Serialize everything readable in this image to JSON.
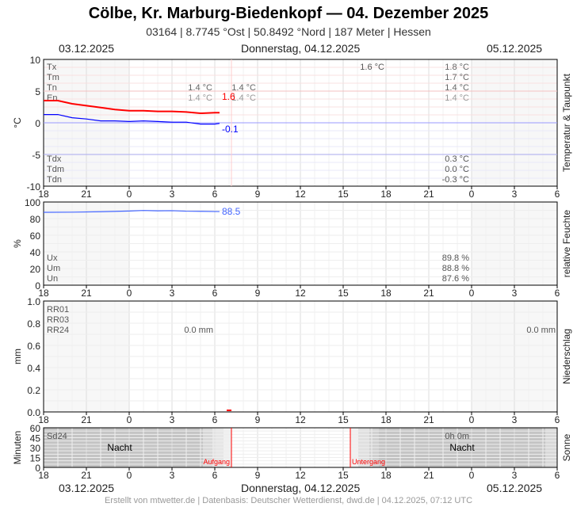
{
  "header": {
    "title": "Cölbe, Kr. Marburg-Biedenkopf  —  04. Dezember 2025",
    "subtitle": "03164  |  8.7745 °Ost  |  50.8492 °Nord  |  187 Meter  |  Hessen",
    "date_left": "03.12.2025",
    "date_center": "Donnerstag, 04.12.2025",
    "date_right": "05.12.2025"
  },
  "footer": "Erstellt von mtwetter.de | Datenbasis: Deutscher Wetterdienst, dwd.de | 04.12.2025, 07:12 UTC",
  "x_ticks": [
    "18",
    "21",
    "0",
    "3",
    "6",
    "9",
    "12",
    "15",
    "18",
    "21",
    "0",
    "3",
    "6"
  ],
  "chart_data": [
    {
      "type": "line",
      "title": "Temperatur & Taupunkt",
      "ylabel": "°C",
      "ylim": [
        -10,
        10
      ],
      "yticks": [
        "10",
        "5",
        "0",
        "-5",
        "-10"
      ],
      "labels_top": [
        "Tx",
        "Tm",
        "Tn",
        "En"
      ],
      "labels_bottom": [
        "Tdx",
        "Tdm",
        "Tdn"
      ],
      "stats_mid1": [
        "1.4 °C",
        "1.4 °C"
      ],
      "stats_mid2": [
        "1.4 °C",
        "1.4 °C"
      ],
      "stat_tx_day": "1.6 °C",
      "stats_right_top": [
        "1.8 °C",
        "1.7 °C",
        "1.4 °C",
        "1.4 °C"
      ],
      "stats_right_bottom": [
        "0.3 °C",
        "0.0 °C",
        "-0.3 °C"
      ],
      "series": [
        {
          "name": "Temperatur",
          "color": "#ff0000",
          "last_label": "1.6",
          "x": [
            "03.12 18:00",
            "03.12 19:00",
            "03.12 20:00",
            "03.12 21:00",
            "03.12 22:00",
            "03.12 23:00",
            "04.12 00:00",
            "04.12 01:00",
            "04.12 02:00",
            "04.12 03:00",
            "04.12 04:00",
            "04.12 05:00",
            "04.12 06:00",
            "04.12 06:20"
          ],
          "values": [
            3.5,
            3.5,
            3.0,
            2.7,
            2.4,
            2.1,
            1.9,
            1.9,
            1.8,
            1.8,
            1.7,
            1.5,
            1.6,
            1.6
          ]
        },
        {
          "name": "Taupunkt",
          "color": "#0000ff",
          "last_label": "-0.1",
          "x": [
            "03.12 18:00",
            "03.12 19:00",
            "03.12 20:00",
            "03.12 21:00",
            "03.12 22:00",
            "03.12 23:00",
            "04.12 00:00",
            "04.12 01:00",
            "04.12 02:00",
            "04.12 03:00",
            "04.12 04:00",
            "04.12 05:00",
            "04.12 06:00",
            "04.12 06:20"
          ],
          "values": [
            1.3,
            1.3,
            0.8,
            0.6,
            0.3,
            0.3,
            0.2,
            0.3,
            0.2,
            0.1,
            0.1,
            -0.2,
            -0.2,
            -0.1
          ]
        }
      ]
    },
    {
      "type": "line",
      "title": "relative Feuchte",
      "ylabel": "%",
      "ylim": [
        0,
        100
      ],
      "yticks": [
        "100",
        "80",
        "60",
        "40",
        "20",
        "0"
      ],
      "labels": [
        "Ux",
        "Um",
        "Un"
      ],
      "stats_right": [
        "89.8 %",
        "88.8 %",
        "87.6 %"
      ],
      "series": [
        {
          "color": "#4466ff",
          "last_label": "88.5",
          "x": [
            "03.12 18:00",
            "03.12 20:00",
            "03.12 22:00",
            "04.12 00:00",
            "04.12 01:00",
            "04.12 02:00",
            "04.12 03:00",
            "04.12 04:00",
            "04.12 05:00",
            "04.12 06:20"
          ],
          "values": [
            87.6,
            87.8,
            88.3,
            89.2,
            89.8,
            89.4,
            89.6,
            89.0,
            88.8,
            88.5
          ]
        }
      ]
    },
    {
      "type": "bar",
      "title": "Niederschlag",
      "ylabel": "mm",
      "ylim": [
        0,
        1
      ],
      "yticks": [
        "1.0",
        "0.8",
        "0.6",
        "0.4",
        "0.2",
        "0.0"
      ],
      "labels": [
        "RR01",
        "RR03",
        "RR24"
      ],
      "stat_mid": "0.0 mm",
      "stat_right": "0.0 mm",
      "series": [
        {
          "color": "#ff0000",
          "x": [
            "04.12 07:00"
          ],
          "values": [
            0.0
          ]
        }
      ]
    },
    {
      "type": "area",
      "title": "Sonne",
      "ylabel": "Minuten",
      "ylim": [
        0,
        60
      ],
      "yticks": [
        "60",
        "45",
        "30",
        "15",
        "0"
      ],
      "label": "Sd24",
      "stat_right": "0h 0m",
      "night_label": "Nacht",
      "sunrise_label": "Aufgang",
      "sunset_label": "Untergang",
      "sunrise": "04.12 07:10",
      "sunset": "04.12 15:30"
    }
  ]
}
